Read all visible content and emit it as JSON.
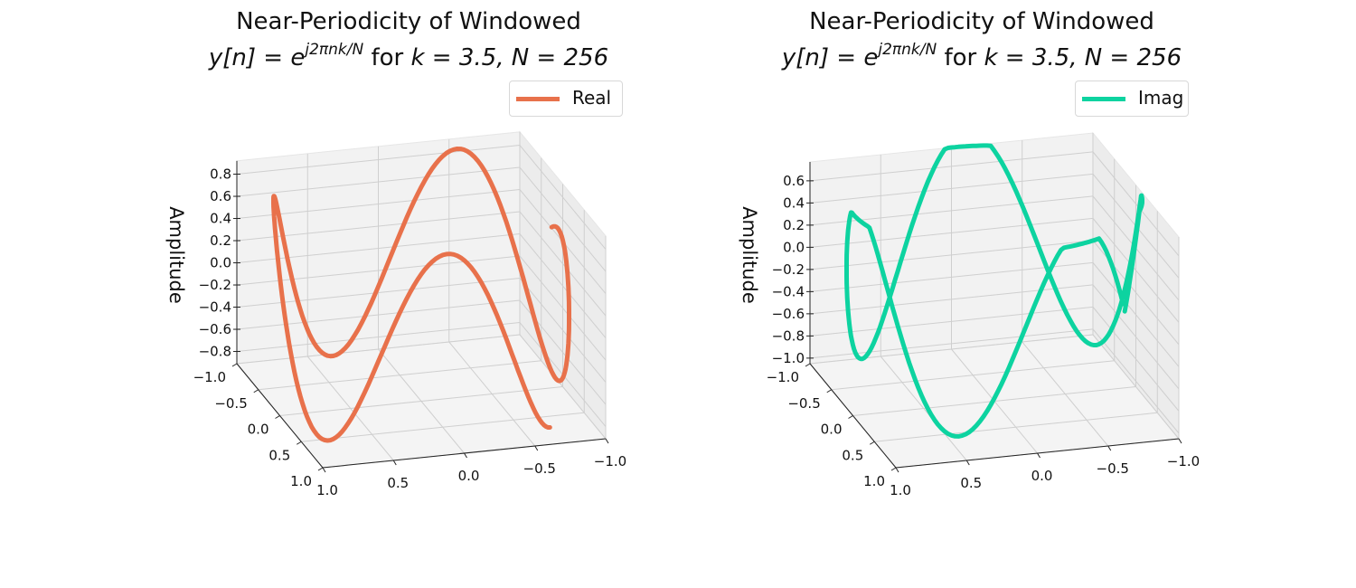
{
  "chart_data": [
    {
      "type": "line3d",
      "title_line1": "Near-Periodicity of Windowed",
      "title_math": {
        "lhs": "y[n] = e",
        "sup": "j2πnk/N",
        "rest": " for ",
        "k": "k = 3.5, ",
        "N": "N = 256"
      },
      "k": 3.5,
      "N": 256,
      "component": "real",
      "zlabel": "Amplitude",
      "legend": {
        "label": "Real",
        "position": "upper-right"
      },
      "color": "#E8714B",
      "xlim": [
        -1,
        1
      ],
      "ylim": [
        -1,
        1
      ],
      "zlim": [
        -0.91,
        0.92
      ],
      "xticks": [
        "1.0",
        "0.5",
        "0.0",
        "−0.5",
        "−1.0"
      ],
      "xtick_values": [
        1,
        0.5,
        0,
        -0.5,
        -1
      ],
      "yticks": [
        "−1.0",
        "−0.5",
        "0.0",
        "0.5",
        "1.0"
      ],
      "ytick_values": [
        -1,
        -0.5,
        0,
        0.5,
        1
      ],
      "zticks": [
        "−0.8",
        "−0.6",
        "−0.4",
        "−0.2",
        "0.0",
        "0.2",
        "0.4",
        "0.6",
        "0.8"
      ],
      "ztick_values": [
        -0.8,
        -0.6,
        -0.4,
        -0.2,
        0,
        0.2,
        0.4,
        0.6,
        0.8
      ],
      "grid": true
    },
    {
      "type": "line3d",
      "title_line1": "Near-Periodicity of Windowed",
      "title_math": {
        "lhs": "y[n] = e",
        "sup": "j2πnk/N",
        "rest": " for ",
        "k": "k = 3.5, ",
        "N": "N = 256"
      },
      "k": 3.5,
      "N": 256,
      "component": "imag",
      "zlabel": "Amplitude",
      "legend": {
        "label": "Imag",
        "position": "upper-right"
      },
      "color": "#0DD3A0",
      "xlim": [
        -1,
        1
      ],
      "ylim": [
        -1,
        1
      ],
      "zlim": [
        -1.05,
        0.77
      ],
      "xticks": [
        "1.0",
        "0.5",
        "0.0",
        "−0.5",
        "−1.0"
      ],
      "xtick_values": [
        1,
        0.5,
        0,
        -0.5,
        -1
      ],
      "yticks": [
        "−1.0",
        "−0.5",
        "0.0",
        "0.5",
        "1.0"
      ],
      "ytick_values": [
        -1,
        -0.5,
        0,
        0.5,
        1
      ],
      "zticks": [
        "−1.0",
        "−0.8",
        "−0.6",
        "−0.4",
        "−0.2",
        "0.0",
        "0.2",
        "0.4",
        "0.6"
      ],
      "ztick_values": [
        -1,
        -0.8,
        -0.6,
        -0.4,
        -0.2,
        0,
        0.2,
        0.4,
        0.6
      ],
      "grid": true
    }
  ]
}
